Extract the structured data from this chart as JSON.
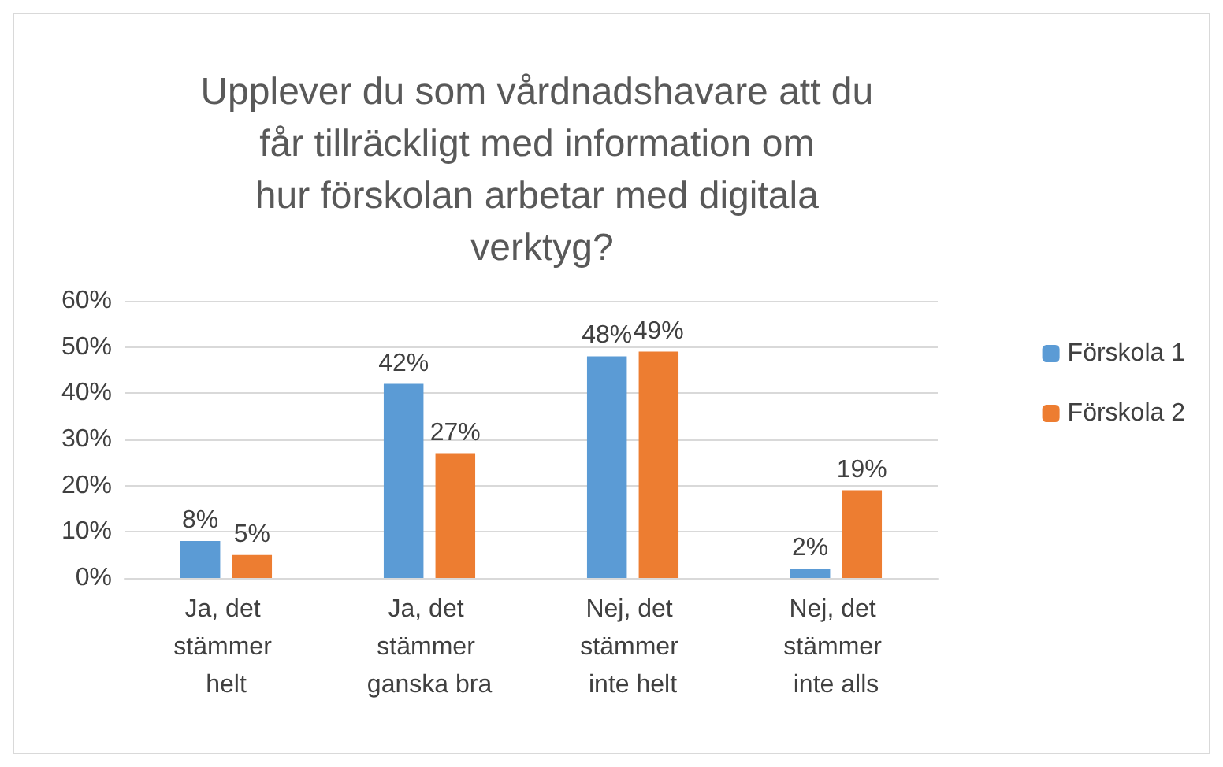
{
  "chart_data": {
    "type": "bar",
    "title": "Upplever du som vårdnadshavare att du får tillräckligt med information om hur förskolan arbetar med digitala verktyg?",
    "categories": [
      "Ja, det stämmer helt",
      "Ja, det stämmer ganska bra",
      "Nej, det stämmer inte helt",
      "Nej, det stämmer inte alls"
    ],
    "series": [
      {
        "name": "Förskola 1",
        "color": "#5b9bd5",
        "values": [
          8,
          42,
          48,
          2
        ],
        "value_labels": [
          "8%",
          "42%",
          "48%",
          "2%"
        ]
      },
      {
        "name": "Förskola 2",
        "color": "#ed7d31",
        "values": [
          5,
          27,
          49,
          19
        ],
        "value_labels": [
          "5%",
          "27%",
          "49%",
          "19%"
        ]
      }
    ],
    "ylim": [
      0,
      60
    ],
    "yticks": [
      {
        "value": 0,
        "label": "0%"
      },
      {
        "value": 10,
        "label": "10%"
      },
      {
        "value": 20,
        "label": "20%"
      },
      {
        "value": 30,
        "label": "30%"
      },
      {
        "value": 40,
        "label": "40%"
      },
      {
        "value": 50,
        "label": "50%"
      },
      {
        "value": 60,
        "label": "60%"
      }
    ],
    "grid": "y",
    "legend": "right"
  }
}
